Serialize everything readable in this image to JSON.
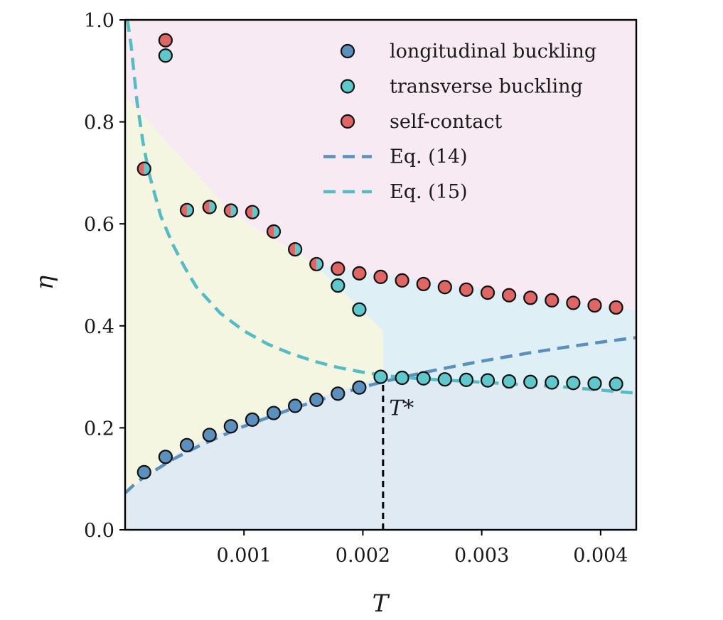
{
  "chart_data": {
    "type": "scatter",
    "title": "",
    "xlabel": "T",
    "ylabel": "η",
    "xlim": [
      0.0,
      0.0043
    ],
    "ylim": [
      0.0,
      1.0
    ],
    "xticks": [
      0.001,
      0.002,
      0.003,
      0.004
    ],
    "xtick_labels": [
      "0.001",
      "0.002",
      "0.003",
      "0.004"
    ],
    "yticks": [
      0.0,
      0.2,
      0.4,
      0.6,
      0.8,
      1.0
    ],
    "ytick_labels": [
      "0.0",
      "0.2",
      "0.4",
      "0.6",
      "0.8",
      "1.0"
    ],
    "grid": false,
    "legend_position": "top-right",
    "colors": {
      "longitudinal": "#5b8fbe",
      "transverse": "#5ec8cc",
      "self_contact": "#e06666",
      "eq14": "#5b8fbe",
      "eq15": "#55bcc4",
      "region_longitudinal": "#dfeaf3",
      "region_transverse": "#def0f5",
      "region_self_contact": "#f8eaf2",
      "region_intermediate": "#f4f6e1"
    },
    "regions": [
      {
        "name": "self-contact region",
        "color_key": "region_self_contact",
        "polygon": [
          [
            0.0,
            1.0
          ],
          [
            0.0043,
            1.0
          ],
          [
            0.0043,
            0.43
          ],
          [
            0.0016,
            0.52
          ],
          [
            0.0009,
            0.62
          ],
          [
            0.0,
            0.85
          ]
        ]
      },
      {
        "name": "intermediate region",
        "color_key": "region_intermediate",
        "polygon": [
          [
            0.0,
            0.85
          ],
          [
            0.0009,
            0.62
          ],
          [
            0.0016,
            0.52
          ],
          [
            0.00217,
            0.39
          ],
          [
            0.00217,
            0.29
          ],
          [
            0.0019,
            0.28
          ],
          [
            0.0015,
            0.25
          ],
          [
            0.001,
            0.21
          ],
          [
            0.0005,
            0.16
          ],
          [
            0.0002,
            0.11
          ],
          [
            0.0,
            0.07
          ]
        ]
      },
      {
        "name": "transverse region",
        "color_key": "region_transverse",
        "polygon": [
          [
            0.0016,
            0.52
          ],
          [
            0.0043,
            0.43
          ],
          [
            0.0043,
            0.27
          ],
          [
            0.0035,
            0.285
          ],
          [
            0.0026,
            0.3
          ],
          [
            0.00217,
            0.3
          ],
          [
            0.00217,
            0.39
          ]
        ]
      },
      {
        "name": "longitudinal region",
        "color_key": "region_longitudinal",
        "polygon": [
          [
            0.0,
            0.0
          ],
          [
            0.0043,
            0.0
          ],
          [
            0.0043,
            0.27
          ],
          [
            0.0035,
            0.285
          ],
          [
            0.0026,
            0.3
          ],
          [
            0.00217,
            0.3
          ],
          [
            0.0019,
            0.28
          ],
          [
            0.0015,
            0.25
          ],
          [
            0.001,
            0.21
          ],
          [
            0.0005,
            0.16
          ],
          [
            0.0002,
            0.11
          ],
          [
            0.0,
            0.07
          ]
        ]
      }
    ],
    "series": [
      {
        "name": "longitudinal buckling",
        "kind": "points",
        "color_key": "longitudinal",
        "x": [
          0.00016,
          0.00034,
          0.00052,
          0.00071,
          0.00089,
          0.00107,
          0.00125,
          0.00143,
          0.00161,
          0.00179,
          0.00197
        ],
        "y": [
          0.113,
          0.143,
          0.166,
          0.186,
          0.203,
          0.216,
          0.229,
          0.243,
          0.255,
          0.267,
          0.279
        ]
      },
      {
        "name": "transverse buckling",
        "kind": "points",
        "color_key": "transverse",
        "x": [
          0.00034,
          0.00215,
          0.00233,
          0.00251,
          0.00269,
          0.00287,
          0.00305,
          0.00323,
          0.00341,
          0.00359,
          0.00377,
          0.00395,
          0.00413
        ],
        "y": [
          0.93,
          0.3,
          0.298,
          0.297,
          0.295,
          0.294,
          0.293,
          0.291,
          0.29,
          0.289,
          0.288,
          0.287,
          0.286
        ]
      },
      {
        "name": "self-contact",
        "kind": "points",
        "color_key": "self_contact",
        "x": [
          0.00034,
          0.00179,
          0.00197,
          0.00215,
          0.00233,
          0.00251,
          0.00269,
          0.00287,
          0.00305,
          0.00323,
          0.00341,
          0.00359,
          0.00377,
          0.00395,
          0.00413
        ],
        "y": [
          0.96,
          0.512,
          0.503,
          0.496,
          0.489,
          0.482,
          0.476,
          0.471,
          0.465,
          0.46,
          0.455,
          0.45,
          0.445,
          0.44,
          0.436
        ]
      },
      {
        "name": "transverse buckling (isolated)",
        "kind": "points",
        "color_key": "transverse",
        "legend": false,
        "x": [
          0.00179,
          0.00197
        ],
        "y": [
          0.479,
          0.432
        ]
      },
      {
        "name": "transverse / self-contact (split markers)",
        "kind": "split_points",
        "legend": false,
        "left_color_key": "self_contact",
        "right_color_key": "transverse",
        "x": [
          0.00016,
          0.00052,
          0.00071,
          0.00089,
          0.00107,
          0.00125,
          0.00143,
          0.00161
        ],
        "y": [
          0.708,
          0.627,
          0.633,
          0.626,
          0.623,
          0.585,
          0.55,
          0.521
        ]
      },
      {
        "name": "Eq. (14)",
        "kind": "dashed_line",
        "color_key": "eq14",
        "x": [
          0.0,
          0.0001,
          0.0002,
          0.0004,
          0.0006,
          0.0008,
          0.001,
          0.0012,
          0.0014,
          0.0016,
          0.0018,
          0.002,
          0.0022,
          0.0025,
          0.0028,
          0.0031,
          0.0034,
          0.0037,
          0.004,
          0.0043
        ],
        "y": [
          0.072,
          0.094,
          0.109,
          0.138,
          0.162,
          0.183,
          0.203,
          0.22,
          0.237,
          0.252,
          0.266,
          0.28,
          0.292,
          0.308,
          0.322,
          0.335,
          0.347,
          0.358,
          0.368,
          0.377
        ]
      },
      {
        "name": "Eq. (15)",
        "kind": "dashed_line",
        "color_key": "eq15",
        "x": [
          2e-05,
          5e-05,
          0.0001,
          0.00015,
          0.0002,
          0.0003,
          0.0004,
          0.0005,
          0.0006,
          0.0008,
          0.001,
          0.0012,
          0.0014,
          0.0016,
          0.0018,
          0.002,
          0.0022,
          0.0025,
          0.0028,
          0.0031,
          0.0034,
          0.0037,
          0.004,
          0.0043
        ],
        "y": [
          1.0,
          0.95,
          0.84,
          0.76,
          0.7,
          0.615,
          0.56,
          0.515,
          0.476,
          0.425,
          0.39,
          0.364,
          0.345,
          0.33,
          0.318,
          0.309,
          0.302,
          0.296,
          0.292,
          0.288,
          0.284,
          0.28,
          0.274,
          0.268
        ]
      }
    ],
    "marker_line": {
      "x": 0.00217,
      "y0": 0.0,
      "y1": 0.29
    },
    "annotations": [
      {
        "text": "T*",
        "x": 0.00222,
        "y": 0.225
      }
    ],
    "legend": [
      {
        "label": "longitudinal buckling",
        "symbol": "marker",
        "color_key": "longitudinal"
      },
      {
        "label": "transverse buckling",
        "symbol": "marker",
        "color_key": "transverse"
      },
      {
        "label": "self-contact",
        "symbol": "marker",
        "color_key": "self_contact"
      },
      {
        "label": "Eq. (14)",
        "symbol": "dash",
        "color_key": "eq14"
      },
      {
        "label": "Eq. (15)",
        "symbol": "dash",
        "color_key": "eq15"
      }
    ]
  }
}
